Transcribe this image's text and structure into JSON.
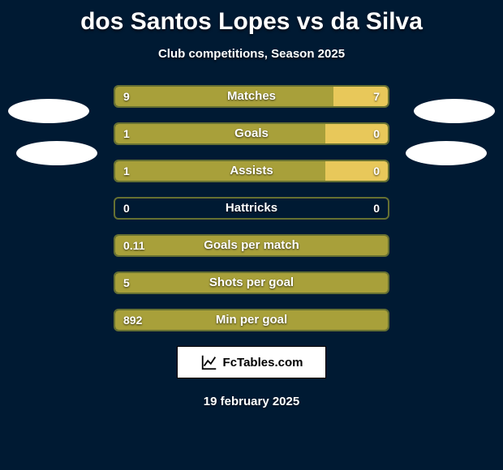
{
  "title": "dos Santos Lopes vs da Silva",
  "subtitle": "Club competitions, Season 2025",
  "date": "19 february 2025",
  "logo_text": "FcTables.com",
  "colors": {
    "background": "#001a33",
    "bar_left": "#a8a03a",
    "bar_right": "#e8c85a",
    "text": "#ffffff",
    "avatar": "#ffffff",
    "logo_bg": "#ffffff",
    "logo_border": "#000000"
  },
  "stats": [
    {
      "label": "Matches",
      "left_val": "9",
      "right_val": "7",
      "left_pct": 80,
      "right_pct": 20
    },
    {
      "label": "Goals",
      "left_val": "1",
      "right_val": "0",
      "left_pct": 77,
      "right_pct": 23
    },
    {
      "label": "Assists",
      "left_val": "1",
      "right_val": "0",
      "left_pct": 77,
      "right_pct": 23
    },
    {
      "label": "Hattricks",
      "left_val": "0",
      "right_val": "0",
      "left_pct": 0,
      "right_pct": 0
    },
    {
      "label": "Goals per match",
      "left_val": "0.11",
      "right_val": "",
      "left_pct": 100,
      "right_pct": 0
    },
    {
      "label": "Shots per goal",
      "left_val": "5",
      "right_val": "",
      "left_pct": 100,
      "right_pct": 0
    },
    {
      "label": "Min per goal",
      "left_val": "892",
      "right_val": "",
      "left_pct": 100,
      "right_pct": 0
    }
  ]
}
